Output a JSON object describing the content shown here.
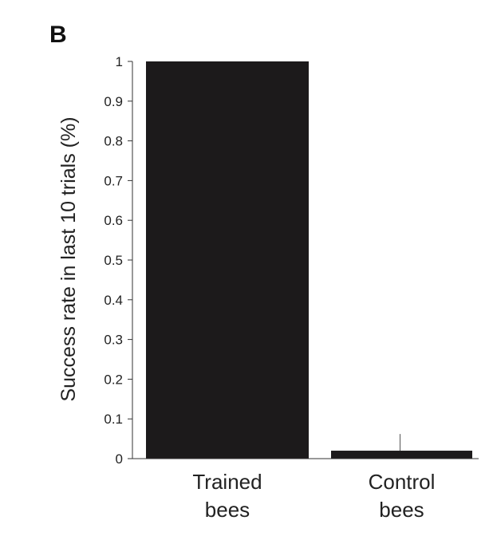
{
  "panel_label": "B",
  "chart_data": {
    "type": "bar",
    "categories": [
      [
        "Trained",
        "bees"
      ],
      [
        "Control",
        "bees"
      ]
    ],
    "values": [
      1.0,
      0.02
    ],
    "error_upper": [
      1.0,
      0.062
    ],
    "ylabel": "Success rate in last 10 trials (%)",
    "ylim": [
      0,
      1
    ],
    "yticks": [
      "0",
      "0.1",
      "0.2",
      "0.3",
      "0.4",
      "0.5",
      "0.6",
      "0.7",
      "0.8",
      "0.9",
      "1"
    ],
    "bar_color": "#1c1a1b",
    "grid": false
  }
}
